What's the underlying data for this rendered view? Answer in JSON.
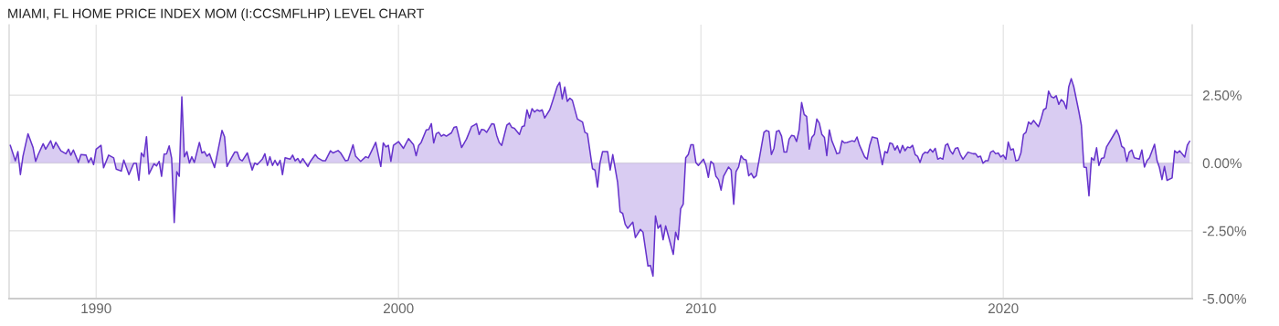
{
  "chart_data": {
    "type": "area",
    "title": "MIAMI, FL HOME PRICE INDEX MOM (I:CCSMFLHP) LEVEL CHART",
    "x": [
      "1987-03",
      "1987-05",
      "1987-06",
      "1987-07",
      "1987-08",
      "1987-10",
      "1987-12",
      "1988-01",
      "1988-02",
      "1988-04",
      "1988-05",
      "1988-07",
      "1988-08",
      "1988-09",
      "1988-11",
      "1989-01",
      "1989-02",
      "1989-03",
      "1989-04",
      "1989-06",
      "1989-07",
      "1989-09",
      "1989-10",
      "1989-11",
      "1989-12",
      "1990-01",
      "1990-03",
      "1990-04",
      "1990-06",
      "1990-08",
      "1990-09",
      "1990-11",
      "1990-12",
      "1991-02",
      "1991-04",
      "1991-05",
      "1991-06",
      "1991-07",
      "1991-08",
      "1991-09",
      "1991-10",
      "1991-12",
      "1992-01",
      "1992-02",
      "1992-03",
      "1992-04",
      "1992-05",
      "1992-06",
      "1992-07",
      "1992-08",
      "1992-09",
      "1992-10",
      "1992-11",
      "1992-12",
      "1993-01",
      "1993-02",
      "1993-03",
      "1993-04",
      "1993-06",
      "1993-07",
      "1993-08",
      "1993-09",
      "1993-10",
      "1993-12",
      "1994-03",
      "1994-04",
      "1994-05",
      "1994-06",
      "1994-08",
      "1994-09",
      "1994-10",
      "1994-11",
      "1995-01",
      "1995-03",
      "1995-04",
      "1995-05",
      "1995-07",
      "1995-08",
      "1995-09",
      "1995-10",
      "1995-11",
      "1995-12",
      "1996-01",
      "1996-02",
      "1996-03",
      "1996-04",
      "1996-06",
      "1996-07",
      "1996-08",
      "1996-09",
      "1996-10",
      "1996-11",
      "1997-01",
      "1997-02",
      "1997-04",
      "1997-05",
      "1997-07",
      "1997-08",
      "1997-10",
      "1997-11",
      "1998-01",
      "1998-02",
      "1998-04",
      "1998-05",
      "1998-07",
      "1998-08",
      "1998-10",
      "1998-12",
      "1999-01",
      "1999-04",
      "1999-06",
      "1999-07",
      "1999-08",
      "1999-09",
      "1999-10",
      "1999-11",
      "2000-01",
      "2000-03",
      "2000-05",
      "2000-07",
      "2000-08",
      "2000-09",
      "2000-10",
      "2000-12",
      "2001-01",
      "2001-02",
      "2001-03",
      "2001-04",
      "2001-05",
      "2001-06",
      "2001-07",
      "2001-08",
      "2001-10",
      "2001-11",
      "2001-12",
      "2002-02",
      "2002-04",
      "2002-06",
      "2002-07",
      "2002-08",
      "2002-09",
      "2002-10",
      "2002-11",
      "2002-12",
      "2003-02",
      "2003-03",
      "2003-04",
      "2003-05",
      "2003-06",
      "2003-08",
      "2003-09",
      "2003-10",
      "2003-11",
      "2004-01",
      "2004-02",
      "2004-03",
      "2004-04",
      "2004-05",
      "2004-06",
      "2004-07",
      "2004-08",
      "2004-09",
      "2004-10",
      "2004-11",
      "2005-01",
      "2005-02",
      "2005-04",
      "2005-05",
      "2005-06",
      "2005-07",
      "2005-08",
      "2005-09",
      "2005-10",
      "2005-12",
      "2006-02",
      "2006-03",
      "2006-04",
      "2006-06",
      "2006-07",
      "2006-08",
      "2006-09",
      "2006-10",
      "2006-12",
      "2007-01",
      "2007-02",
      "2007-04",
      "2007-05",
      "2007-06",
      "2007-07",
      "2007-08",
      "2007-10",
      "2007-11",
      "2008-01",
      "2008-02",
      "2008-04",
      "2008-05",
      "2008-06",
      "2008-07",
      "2008-08",
      "2008-09",
      "2008-10",
      "2008-11",
      "2009-02",
      "2009-03",
      "2009-04",
      "2009-05",
      "2009-06",
      "2009-07",
      "2009-08",
      "2009-09",
      "2009-10",
      "2009-11",
      "2009-12",
      "2010-02",
      "2010-03",
      "2010-04",
      "2010-05",
      "2010-06",
      "2010-07",
      "2010-08",
      "2010-09",
      "2010-10",
      "2010-12",
      "2011-01",
      "2011-02",
      "2011-03",
      "2011-04",
      "2011-05",
      "2011-06",
      "2011-07",
      "2011-08",
      "2011-09",
      "2011-10",
      "2011-11",
      "2012-01",
      "2012-02",
      "2012-03",
      "2012-04",
      "2012-05",
      "2012-06",
      "2012-07",
      "2012-08",
      "2012-09",
      "2012-10",
      "2012-11",
      "2012-12",
      "2013-01",
      "2013-02",
      "2013-03",
      "2013-04",
      "2013-05",
      "2013-06",
      "2013-07",
      "2013-08",
      "2013-09",
      "2013-10",
      "2013-11",
      "2013-12",
      "2014-01",
      "2014-02",
      "2014-03",
      "2014-04",
      "2014-05",
      "2014-06",
      "2014-07",
      "2014-08",
      "2014-09",
      "2014-10",
      "2014-11",
      "2015-01",
      "2015-02",
      "2015-03",
      "2015-04",
      "2015-06",
      "2015-07",
      "2015-08",
      "2015-09",
      "2015-11",
      "2016-01",
      "2016-02",
      "2016-03",
      "2016-04",
      "2016-05",
      "2016-06",
      "2016-07",
      "2016-08",
      "2016-09",
      "2016-10",
      "2016-11",
      "2016-12",
      "2017-01",
      "2017-02",
      "2017-03",
      "2017-04",
      "2017-05",
      "2017-06",
      "2017-07",
      "2017-08",
      "2017-09",
      "2017-10",
      "2017-11",
      "2017-12",
      "2018-01",
      "2018-02",
      "2018-03",
      "2018-04",
      "2018-05",
      "2018-06",
      "2018-07",
      "2018-08",
      "2018-09",
      "2018-11",
      "2019-01",
      "2019-02",
      "2019-03",
      "2019-04",
      "2019-05",
      "2019-06",
      "2019-07",
      "2019-08",
      "2019-09",
      "2019-10",
      "2019-11",
      "2019-12",
      "2020-01",
      "2020-02",
      "2020-03",
      "2020-04",
      "2020-05",
      "2020-06",
      "2020-07",
      "2020-08",
      "2020-09",
      "2020-10",
      "2020-11",
      "2020-12",
      "2021-01",
      "2021-02",
      "2021-03",
      "2021-04",
      "2021-05",
      "2021-06",
      "2021-07",
      "2021-08",
      "2021-09",
      "2021-10",
      "2021-11",
      "2021-12",
      "2022-01",
      "2022-02",
      "2022-03",
      "2022-04",
      "2022-05",
      "2022-07",
      "2022-08",
      "2022-09",
      "2022-10",
      "2022-11",
      "2022-12",
      "2023-01",
      "2023-02",
      "2023-03",
      "2023-04",
      "2023-05",
      "2023-06",
      "2023-08",
      "2023-10",
      "2023-11",
      "2023-12",
      "2024-01",
      "2024-02",
      "2024-03",
      "2024-04",
      "2024-05",
      "2024-06",
      "2024-07",
      "2024-08",
      "2024-09",
      "2024-10",
      "2024-11",
      "2025-01",
      "2025-02",
      "2025-03",
      "2025-04",
      "2025-05",
      "2025-06",
      "2025-08",
      "2025-09",
      "2025-10",
      "2025-11",
      "2026-01",
      "2026-02",
      "2026-03"
    ],
    "series": [
      {
        "color": "#6633cc",
        "values": [
          0.65,
          0.08,
          0.42,
          -0.43,
          0.25,
          1.08,
          0.57,
          0.06,
          0.31,
          0.71,
          0.51,
          0.82,
          0.54,
          0.76,
          0.45,
          0.34,
          0.51,
          0.29,
          0.48,
          0.02,
          0.31,
          0.29,
          0.02,
          0.19,
          -0.06,
          0.51,
          0.65,
          -0.18,
          0.29,
          0.19,
          -0.23,
          -0.3,
          0.11,
          -0.43,
          -0.01,
          -0.01,
          -0.64,
          0.37,
          0.23,
          0.97,
          -0.41,
          -0.03,
          -0.11,
          0.06,
          -0.49,
          0.33,
          0.34,
          0.63,
          0.17,
          -2.2,
          -0.32,
          -0.49,
          2.44,
          0.23,
          0.42,
          0.0,
          0.23,
          0.02,
          0.76,
          0.37,
          0.42,
          0.25,
          0.34,
          -0.17,
          1.2,
          0.97,
          -0.13,
          0.06,
          0.4,
          0.4,
          0.14,
          0.08,
          0.37,
          -0.26,
          0.0,
          -0.06,
          0.14,
          0.34,
          -0.09,
          0.23,
          -0.09,
          0.1,
          -0.09,
          0.1,
          -0.43,
          0.19,
          0.14,
          0.29,
          0.08,
          0.17,
          0.0,
          0.16,
          -0.13,
          0.06,
          0.31,
          0.19,
          0.08,
          0.08,
          0.45,
          0.37,
          0.46,
          0.37,
          0.08,
          0.1,
          0.67,
          0.25,
          0.06,
          0.23,
          0.19,
          0.76,
          -0.13,
          0.74,
          0.59,
          0.65,
          0.06,
          0.65,
          0.79,
          0.54,
          0.9,
          0.67,
          0.27,
          0.65,
          0.76,
          1.22,
          1.24,
          1.45,
          0.74,
          1.08,
          1.13,
          0.99,
          1.05,
          0.99,
          1.11,
          1.31,
          1.34,
          0.57,
          0.88,
          1.34,
          1.39,
          1.45,
          1.05,
          1.24,
          1.22,
          1.13,
          1.45,
          1.43,
          1.02,
          0.76,
          0.65,
          1.39,
          1.47,
          1.31,
          1.28,
          1.05,
          1.34,
          1.37,
          1.96,
          1.66,
          2.0,
          1.88,
          1.96,
          1.91,
          1.96,
          1.66,
          1.96,
          2.25,
          2.82,
          2.97,
          2.36,
          2.8,
          2.27,
          2.39,
          2.31,
          1.62,
          1.51,
          1.13,
          1.08,
          -0.21,
          -0.26,
          -0.89,
          0.02,
          0.42,
          0.42,
          -0.26,
          0.31,
          -0.72,
          -1.8,
          -1.86,
          -2.26,
          -2.41,
          -2.18,
          -2.75,
          -2.45,
          -2.55,
          -3.8,
          -3.78,
          -4.17,
          -1.95,
          -2.41,
          -2.28,
          -2.83,
          -2.32,
          -3.37,
          -2.55,
          -2.83,
          -1.69,
          -1.52,
          0.19,
          0.31,
          0.67,
          0.67,
          0.02,
          -0.09,
          0.14,
          -0.09,
          -0.53,
          0.06,
          -0.03,
          -0.49,
          -0.61,
          -1.0,
          -0.49,
          -0.15,
          -0.26,
          -1.52,
          -0.32,
          -0.15,
          0.27,
          0.14,
          0.11,
          -0.47,
          -0.38,
          -0.55,
          -0.47,
          0.59,
          1.13,
          1.2,
          1.16,
          0.31,
          0.54,
          1.16,
          1.2,
          0.99,
          0.4,
          0.4,
          0.88,
          1.02,
          0.99,
          0.79,
          1.22,
          2.23,
          1.79,
          1.71,
          0.51,
          0.94,
          1.05,
          1.62,
          1.47,
          1.05,
          0.94,
          0.27,
          1.22,
          0.82,
          0.59,
          0.34,
          0.37,
          0.82,
          0.74,
          0.76,
          0.82,
          0.79,
          0.96,
          0.65,
          0.23,
          0.14,
          0.65,
          0.96,
          0.91,
          -0.06,
          0.42,
          0.37,
          0.74,
          0.71,
          0.48,
          0.63,
          0.37,
          0.65,
          0.45,
          0.59,
          0.56,
          0.65,
          0.31,
          0.25,
          0.02,
          0.31,
          0.4,
          0.37,
          0.51,
          0.4,
          0.54,
          0.14,
          0.19,
          0.14,
          0.65,
          0.71,
          0.45,
          0.33,
          0.54,
          0.56,
          0.31,
          0.14,
          0.4,
          0.34,
          0.34,
          0.22,
          0.25,
          -0.01,
          0.08,
          0.08,
          0.4,
          0.45,
          0.34,
          0.37,
          0.22,
          0.29,
          0.14,
          0.77,
          0.48,
          0.52,
          0.08,
          0.11,
          0.37,
          1.05,
          1.13,
          1.51,
          1.43,
          1.57,
          1.45,
          1.34,
          1.62,
          1.96,
          2.02,
          2.65,
          2.45,
          2.4,
          2.48,
          2.16,
          2.34,
          2.25,
          2.0,
          2.8,
          3.11,
          2.82,
          1.91,
          1.39,
          -0.15,
          -0.17,
          -1.21,
          0.19,
          0.1,
          0.56,
          -0.09,
          0.17,
          0.19,
          0.59,
          0.9,
          1.22,
          1.0,
          0.62,
          0.54,
          0.06,
          0.4,
          0.48,
          0.19,
          0.17,
          0.14,
          0.48,
          -0.15,
          0.08,
          0.19,
          0.69,
          0.08,
          -0.17,
          -0.61,
          -0.13,
          -0.64,
          -0.55,
          0.45,
          0.37,
          0.45,
          0.22,
          0.66,
          0.8
        ]
      }
    ],
    "xlim": [
      "1987-02-15",
      "2026-04-01"
    ],
    "ylim": [
      -5,
      5.1
    ],
    "xticks": [
      {
        "value": "1990-01-01",
        "label": "1990"
      },
      {
        "value": "2000-01-01",
        "label": "2000"
      },
      {
        "value": "2010-01-01",
        "label": "2010"
      },
      {
        "value": "2020-01-01",
        "label": "2020"
      }
    ],
    "yticks": [
      {
        "value": 2.5,
        "label": "2.50%"
      },
      {
        "value": 0,
        "label": "0.00%"
      },
      {
        "value": -2.5,
        "label": "-2.50%"
      },
      {
        "value": -5,
        "label": "-5.00%"
      }
    ],
    "grid": true,
    "line_style": "solid"
  }
}
